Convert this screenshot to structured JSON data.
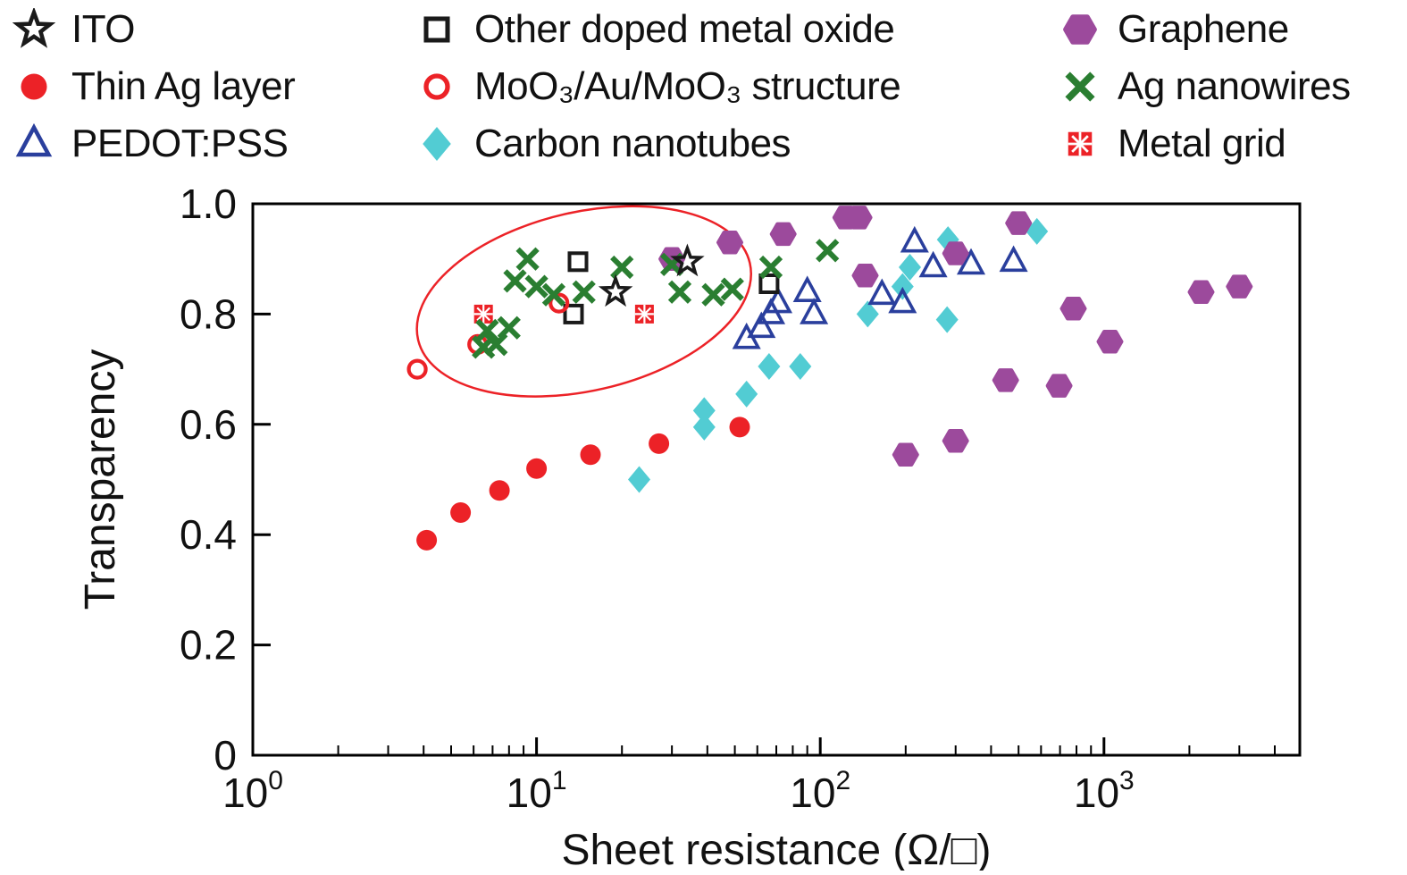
{
  "colors": {
    "black": "#1a1a1a",
    "red": "#ec2227",
    "blue": "#2a3f9d",
    "cyan": "#52ccd3",
    "purple": "#9c4a9c",
    "green": "#2a7e31",
    "axis": "#000000"
  },
  "legend": {
    "items": [
      {
        "id": "ito",
        "label": "ITO",
        "marker": "star",
        "color": "#1a1a1a"
      },
      {
        "id": "thin-ag-layer",
        "label": "Thin Ag layer",
        "marker": "circle-filled",
        "color": "#ec2227"
      },
      {
        "id": "pedot-pss",
        "label": "PEDOT:PSS",
        "marker": "triangle-open",
        "color": "#2a3f9d"
      },
      {
        "id": "other-doped-metal-oxide",
        "label": "Other doped metal oxide",
        "marker": "square-open",
        "color": "#1a1a1a"
      },
      {
        "id": "moo3-au-moo3",
        "label": "MoO₃/Au/MoO₃ structure",
        "marker": "circle-open",
        "color": "#ec2227"
      },
      {
        "id": "carbon-nanotubes",
        "label": "Carbon nanotubes",
        "marker": "diamond-filled",
        "color": "#52ccd3"
      },
      {
        "id": "graphene",
        "label": "Graphene",
        "marker": "hexagon-filled",
        "color": "#9c4a9c"
      },
      {
        "id": "ag-nanowires",
        "label": "Ag nanowires",
        "marker": "x-cross",
        "color": "#2a7e31"
      },
      {
        "id": "metal-grid",
        "label": "Metal grid",
        "marker": "grid-square",
        "color": "#ec2227"
      }
    ]
  },
  "chart_data": {
    "type": "scatter",
    "title": "",
    "xlabel": "Sheet resistance (Ω/□)",
    "ylabel": "Transparency",
    "xscale": "log",
    "xlim": [
      1,
      4900
    ],
    "ylim": [
      0,
      1
    ],
    "grid": false,
    "legend_position": "top",
    "x_ticks": [
      {
        "value": 1,
        "base": "10",
        "exp": "0"
      },
      {
        "value": 10,
        "base": "10",
        "exp": "1"
      },
      {
        "value": 100,
        "base": "10",
        "exp": "2"
      },
      {
        "value": 1000,
        "base": "10",
        "exp": "3"
      }
    ],
    "y_ticks": [
      {
        "value": 0,
        "label": "0"
      },
      {
        "value": 0.2,
        "label": "0.2"
      },
      {
        "value": 0.4,
        "label": "0.4"
      },
      {
        "value": 0.6,
        "label": "0.6"
      },
      {
        "value": 0.8,
        "label": "0.8"
      },
      {
        "value": 1,
        "label": "1.0"
      }
    ],
    "series": [
      {
        "id": "thin-ag-layer",
        "name": "Thin Ag layer",
        "marker": "circle-filled",
        "color": "#ec2227",
        "points": [
          [
            4.1,
            0.39
          ],
          [
            5.4,
            0.44
          ],
          [
            7.4,
            0.48
          ],
          [
            10,
            0.52
          ],
          [
            15.5,
            0.545
          ],
          [
            27,
            0.565
          ],
          [
            52,
            0.595
          ]
        ]
      },
      {
        "id": "carbon-nanotubes",
        "name": "Carbon nanotubes",
        "marker": "diamond-filled",
        "color": "#52ccd3",
        "points": [
          [
            23,
            0.5
          ],
          [
            39,
            0.595
          ],
          [
            39,
            0.625
          ],
          [
            55,
            0.655
          ],
          [
            66,
            0.705
          ],
          [
            85,
            0.705
          ],
          [
            147,
            0.8
          ],
          [
            195,
            0.85
          ],
          [
            207,
            0.885
          ],
          [
            280,
            0.79
          ],
          [
            282,
            0.935
          ],
          [
            580,
            0.95
          ]
        ]
      },
      {
        "id": "pedot-pss",
        "name": "PEDOT:PSS",
        "marker": "triangle-open",
        "color": "#2a3f9d",
        "points": [
          [
            55,
            0.755
          ],
          [
            62,
            0.775
          ],
          [
            67,
            0.8
          ],
          [
            71,
            0.82
          ],
          [
            90,
            0.84
          ],
          [
            95,
            0.8
          ],
          [
            165,
            0.835
          ],
          [
            195,
            0.82
          ],
          [
            215,
            0.93
          ],
          [
            250,
            0.885
          ],
          [
            340,
            0.89
          ],
          [
            480,
            0.895
          ]
        ]
      },
      {
        "id": "other-doped-metal-oxide",
        "name": "Other doped metal oxide",
        "marker": "square-open",
        "color": "#1a1a1a",
        "points": [
          [
            13.5,
            0.8
          ],
          [
            14,
            0.895
          ],
          [
            66,
            0.855
          ]
        ]
      },
      {
        "id": "moo3-au-moo3",
        "name": "MoO₃/Au/MoO₃ structure",
        "marker": "circle-open",
        "color": "#ec2227",
        "points": [
          [
            3.8,
            0.7
          ],
          [
            6.2,
            0.745
          ],
          [
            12,
            0.82
          ]
        ]
      },
      {
        "id": "metal-grid",
        "name": "Metal grid",
        "marker": "grid-square",
        "color": "#ec2227",
        "points": [
          [
            6.5,
            0.8
          ],
          [
            24,
            0.8
          ]
        ]
      },
      {
        "id": "graphene",
        "name": "Graphene",
        "marker": "hexagon-filled",
        "color": "#9c4a9c",
        "points": [
          [
            30,
            0.9
          ],
          [
            48,
            0.93
          ],
          [
            74,
            0.945
          ],
          [
            123,
            0.975
          ],
          [
            137,
            0.975
          ],
          [
            144,
            0.87
          ],
          [
            200,
            0.545
          ],
          [
            300,
            0.57
          ],
          [
            300,
            0.91
          ],
          [
            450,
            0.68
          ],
          [
            500,
            0.965
          ],
          [
            695,
            0.67
          ],
          [
            780,
            0.81
          ],
          [
            1050,
            0.75
          ],
          [
            2200,
            0.84
          ],
          [
            3000,
            0.85
          ]
        ]
      },
      {
        "id": "ag-nanowires",
        "name": "Ag nanowires",
        "marker": "x-cross",
        "color": "#2a7e31",
        "points": [
          [
            6.5,
            0.74
          ],
          [
            7.2,
            0.745
          ],
          [
            6.7,
            0.77
          ],
          [
            8,
            0.775
          ],
          [
            8.4,
            0.86
          ],
          [
            9.3,
            0.9
          ],
          [
            10,
            0.85
          ],
          [
            11.5,
            0.835
          ],
          [
            14.7,
            0.84
          ],
          [
            20,
            0.885
          ],
          [
            30,
            0.89
          ],
          [
            32,
            0.84
          ],
          [
            42,
            0.835
          ],
          [
            49,
            0.845
          ],
          [
            67,
            0.885
          ],
          [
            106,
            0.915
          ]
        ]
      },
      {
        "id": "ito",
        "name": "ITO",
        "marker": "star",
        "color": "#1a1a1a",
        "points": [
          [
            19,
            0.84
          ],
          [
            34,
            0.895
          ]
        ]
      }
    ],
    "annotations": [
      {
        "type": "ellipse",
        "x": 14.7,
        "y": 0.823,
        "rx_decades": 0.6,
        "ry_units": 0.162,
        "rotation_deg": -13,
        "color": "#ec2227"
      }
    ]
  }
}
